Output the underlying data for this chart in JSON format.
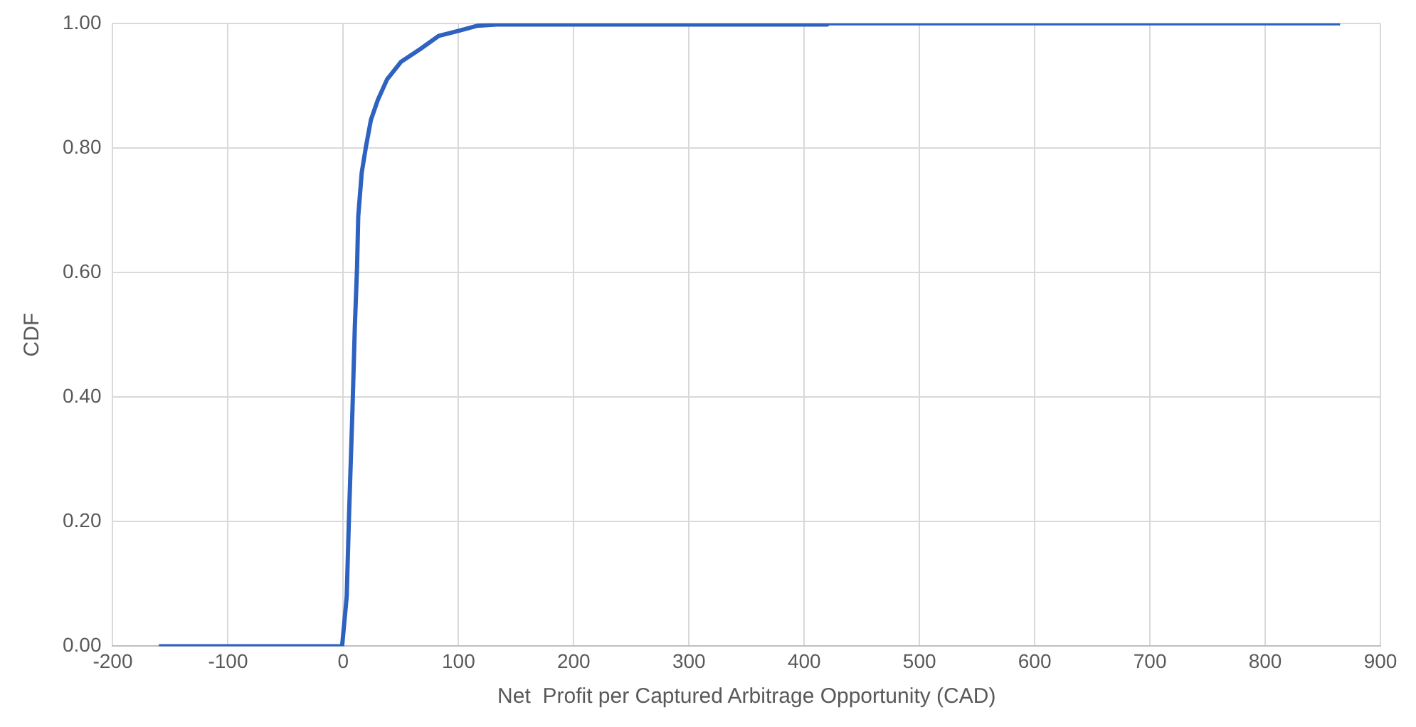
{
  "chart_data": {
    "type": "line",
    "xlabel": "Net  Profit per Captured Arbitrage Opportunity (CAD)",
    "ylabel": "CDF",
    "x": [
      -160,
      -1,
      3,
      5,
      8,
      10,
      12,
      13,
      16,
      19.5,
      24,
      30,
      38,
      50,
      67,
      83,
      100,
      116,
      133,
      420,
      421,
      865
    ],
    "series": [
      {
        "color": "#2e62c0",
        "values": [
          0,
          0,
          0.08,
          0.21,
          0.38,
          0.51,
          0.61,
          0.69,
          0.76,
          0.8,
          0.845,
          0.877,
          0.91,
          0.938,
          0.959,
          0.98,
          0.988,
          0.996,
          0.998,
          0.998,
          1,
          1
        ]
      }
    ],
    "xlim": [
      -200,
      900
    ],
    "xticks": [
      -200,
      -100,
      0,
      100,
      200,
      300,
      400,
      500,
      600,
      700,
      800,
      900
    ],
    "ylim": [
      0,
      1
    ],
    "yticks": [
      {
        "value": 0,
        "label": "0.00"
      },
      {
        "value": 0.2,
        "label": "0.20"
      },
      {
        "value": 0.4,
        "label": "0.40"
      },
      {
        "value": 0.6,
        "label": "0.60"
      },
      {
        "value": 0.8,
        "label": "0.80"
      },
      {
        "value": 1,
        "label": "1.00"
      }
    ],
    "grid": true,
    "legend": false,
    "marker": "none",
    "line_style": "solid"
  }
}
